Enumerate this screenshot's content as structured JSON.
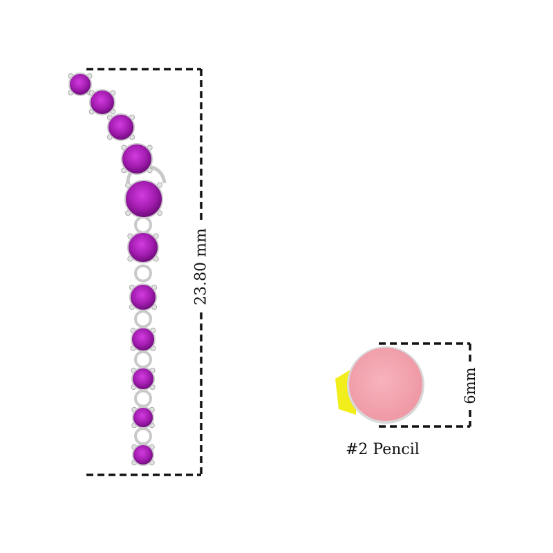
{
  "product": {
    "height_label": "23.80 mm",
    "gem_color": "#a21caf",
    "metal_color": "#c9c9c9"
  },
  "reference": {
    "size_label": "6mm",
    "name_label": "#2 Pencil",
    "eraser_color": "#f4a7b1",
    "pencil_color": "#f2ee1c"
  }
}
